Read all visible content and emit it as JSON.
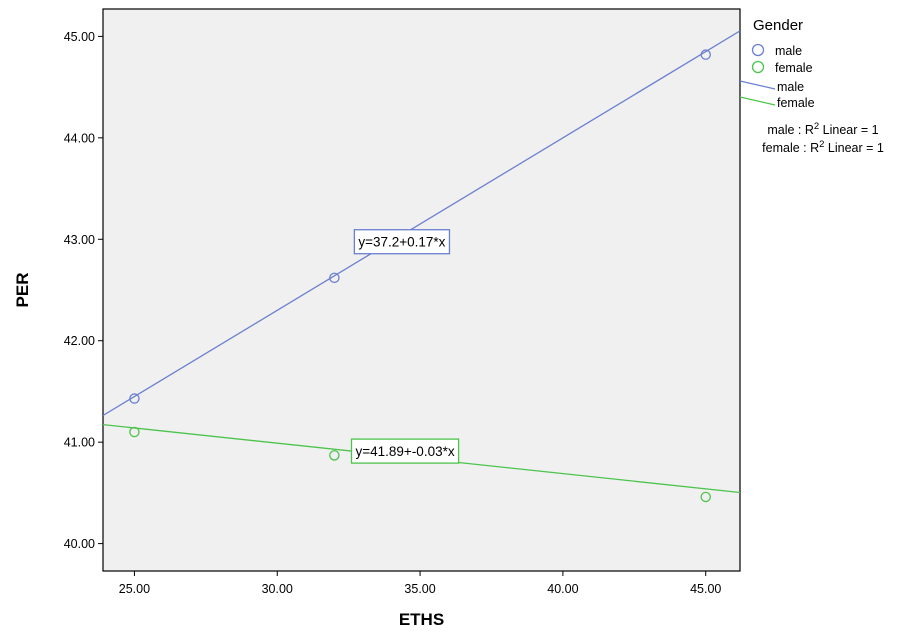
{
  "chart_data": {
    "type": "scatter",
    "xlabel": "ETHS",
    "ylabel": "PER",
    "xlim": [
      23.9,
      46.2
    ],
    "ylim": [
      39.73,
      45.27
    ],
    "x_ticks": [
      "25.00",
      "30.00",
      "35.00",
      "40.00",
      "45.00"
    ],
    "y_ticks": [
      "40.00",
      "41.00",
      "42.00",
      "43.00",
      "44.00",
      "45.00"
    ],
    "x_tick_values": [
      25,
      30,
      35,
      40,
      45
    ],
    "y_tick_values": [
      40,
      41,
      42,
      43,
      44,
      45
    ],
    "grid": false,
    "legend_position": "right",
    "legend": {
      "title": "Gender",
      "marker_entries": [
        "male",
        "female"
      ],
      "line_entries": [
        "male",
        "female"
      ],
      "r2": [
        {
          "group": "male",
          "text": "male : R² Linear = 1"
        },
        {
          "group": "female",
          "text": "female : R² Linear = 1"
        }
      ]
    },
    "series": [
      {
        "name": "male",
        "color": "#6b7fcf",
        "x": [
          25,
          32,
          45
        ],
        "y": [
          41.43,
          42.62,
          44.82
        ],
        "fit": {
          "intercept": 37.2,
          "slope": 0.17,
          "label": "y=37.2+0.17*x"
        }
      },
      {
        "name": "female",
        "color": "#4cc44c",
        "x": [
          25,
          32,
          45
        ],
        "y": [
          41.1,
          40.87,
          40.46
        ],
        "fit": {
          "intercept": 41.89,
          "slope": -0.03,
          "label": "y=41.89+-0.03*x"
        }
      }
    ]
  }
}
